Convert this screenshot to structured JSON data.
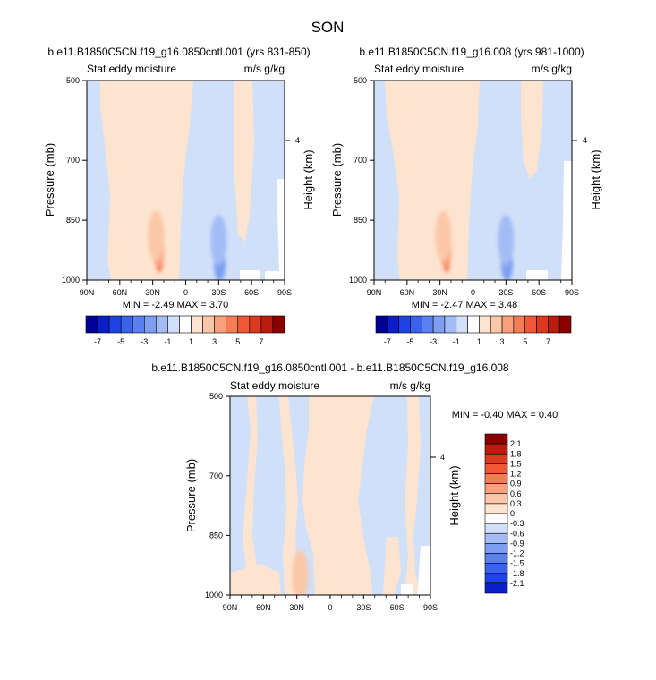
{
  "figure": {
    "title": "SON"
  },
  "colors": {
    "blue": [
      "#000096",
      "#0a1fc8",
      "#1e44e6",
      "#3a62ea",
      "#5a80ee",
      "#7d9ef1",
      "#a3bcf5",
      "#d0e0f8"
    ],
    "white": "#ffffff",
    "red": [
      "#fde4d0",
      "#fbc7a8",
      "#f9a07c",
      "#f57d55",
      "#ee5836",
      "#dc3a1f",
      "#b81d10",
      "#8b0000"
    ]
  },
  "chart_data": [
    {
      "type": "heatmap",
      "subtype": "latitude-pressure filled contour",
      "title": "b.e11.B1850C5CN.f19_g16.0850cntl.001 (yrs 831-850)",
      "left_label": "Stat eddy moisture",
      "right_label": "m/s g/kg",
      "ylabel": "Pressure (mb)",
      "y2label": "Height (km)",
      "yticks": [
        500,
        700,
        850,
        1000
      ],
      "y2ticks": [
        4
      ],
      "xticks": [
        "90N",
        "60N",
        "30N",
        "0",
        "30S",
        "60S",
        "90S"
      ],
      "x_range": [
        90,
        -90
      ],
      "y_range": [
        500,
        1000
      ],
      "stats": "MIN = -2.49  MAX =  3.70",
      "colorbar": {
        "orientation": "horizontal",
        "labels": [
          "-7",
          "-5",
          "-3",
          "-1",
          "1",
          "3",
          "5",
          "7"
        ]
      },
      "features": [
        {
          "sign": "pos",
          "level": 3,
          "lat": 24,
          "p": 958
        },
        {
          "sign": "pos",
          "level": 2,
          "lat": 25,
          "p": 925
        },
        {
          "sign": "pos",
          "level": 1,
          "lat": 27,
          "p": 890
        },
        {
          "sign": "neg",
          "level": 2,
          "lat": -31,
          "p": 960
        },
        {
          "sign": "neg",
          "level": 1,
          "lat": -30,
          "p": 900
        }
      ]
    },
    {
      "type": "heatmap",
      "subtype": "latitude-pressure filled contour",
      "title": "b.e11.B1850C5CN.f19_g16.008 (yrs 981-1000)",
      "left_label": "Stat eddy moisture",
      "right_label": "m/s g/kg",
      "ylabel": "Pressure (mb)",
      "y2label": "Height (km)",
      "yticks": [
        500,
        700,
        850,
        1000
      ],
      "y2ticks": [
        4
      ],
      "xticks": [
        "90N",
        "60N",
        "30N",
        "0",
        "30S",
        "60S",
        "90S"
      ],
      "x_range": [
        90,
        -90
      ],
      "y_range": [
        500,
        1000
      ],
      "stats": "MIN = -2.47  MAX =  3.48",
      "colorbar": {
        "orientation": "horizontal",
        "labels": [
          "-7",
          "-5",
          "-3",
          "-1",
          "1",
          "3",
          "5",
          "7"
        ]
      },
      "features": [
        {
          "sign": "pos",
          "level": 3,
          "lat": 24,
          "p": 958
        },
        {
          "sign": "pos",
          "level": 2,
          "lat": 25,
          "p": 925
        },
        {
          "sign": "pos",
          "level": 1,
          "lat": 27,
          "p": 890
        },
        {
          "sign": "neg",
          "level": 2,
          "lat": -31,
          "p": 960
        },
        {
          "sign": "neg",
          "level": 1,
          "lat": -30,
          "p": 900
        }
      ]
    },
    {
      "type": "heatmap",
      "subtype": "latitude-pressure filled contour",
      "title": "b.e11.B1850C5CN.f19_g16.0850cntl.001 - b.e11.B1850C5CN.f19_g16.008",
      "left_label": "Stat eddy moisture",
      "right_label": "m/s g/kg",
      "ylabel": "Pressure (mb)",
      "y2label": "Height (km)",
      "yticks": [
        500,
        700,
        850,
        1000
      ],
      "y2ticks": [
        4
      ],
      "xticks": [
        "90N",
        "60N",
        "30N",
        "0",
        "30S",
        "60S",
        "90S"
      ],
      "x_range": [
        90,
        -90
      ],
      "y_range": [
        500,
        1000
      ],
      "stats": "MIN = -0.40  MAX =  0.40",
      "colorbar": {
        "orientation": "vertical",
        "labels": [
          "2.1",
          "1.8",
          "1.5",
          "1.2",
          "0.9",
          "0.6",
          "0.3",
          "0",
          "-0.3",
          "-0.6",
          "-0.9",
          "-1.2",
          "-1.5",
          "-1.8",
          "-2.1"
        ]
      },
      "features": [
        {
          "sign": "pos",
          "level": 1,
          "lat": 27,
          "p": 950
        }
      ]
    }
  ]
}
